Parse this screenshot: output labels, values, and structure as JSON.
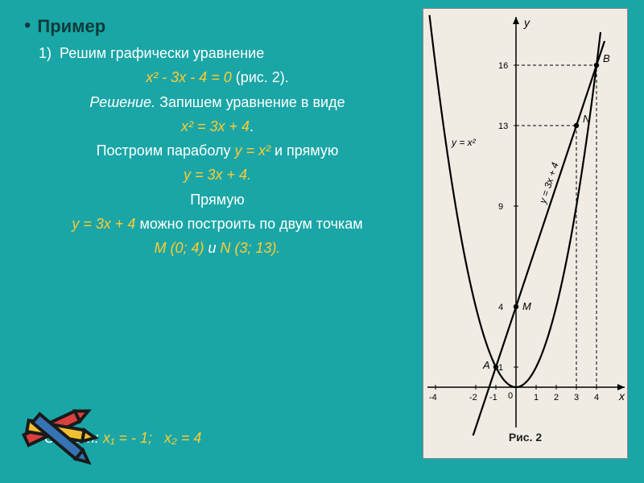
{
  "header": {
    "bullet": "•",
    "title": "Пример"
  },
  "lines": {
    "l1_prefix": "1)",
    "l1": "Решим графически уравнение",
    "eq1": "х² - 3х - 4 = 0",
    "eq1_suffix": " (рис. 2).",
    "l3a": "Решение.",
    "l3b": " Запишем уравнение в виде",
    "eq2": "х² = 3х + 4",
    "l5a": "Построим параболу ",
    "l5b": "у = х²",
    "l5c": " и прямую",
    "eq3": "у = 3х + 4.",
    "l7": "Прямую",
    "l8a": "у = 3х + 4",
    "l8b": "  можно  построить по двум точкам",
    "l9a": "М (0; 4)",
    "l9and": "  и  ",
    "l9b": "N (3; 13)."
  },
  "answer": {
    "label": "Ответ:",
    "x1": "х₁ = - 1;",
    "x2": "х₂  = 4"
  },
  "graph": {
    "background": "#f0ece4",
    "axis_color": "#000000",
    "curve_color": "#000000",
    "caption": "Рис. 2",
    "y_label": "у",
    "x_label": "x",
    "parabola_label": "у = х²",
    "line_label": "у = 3х + 4",
    "points": {
      "A": {
        "x": -1,
        "y": 1,
        "label": "A"
      },
      "B": {
        "x": 4,
        "y": 16,
        "label": "B"
      },
      "M": {
        "x": 0,
        "y": 4,
        "label": "M"
      },
      "N": {
        "x": 3,
        "y": 13,
        "label": "N"
      }
    },
    "x_ticks": [
      -4,
      -2,
      -1,
      0,
      1,
      2,
      3,
      4
    ],
    "y_ticks": [
      1,
      4,
      9,
      13,
      16
    ],
    "xlim": [
      -5,
      5
    ],
    "ylim": [
      -2,
      18
    ]
  },
  "crayons": {
    "colors": [
      "#d94040",
      "#f0c030",
      "#3573b5"
    ],
    "dark": "#1a1a1a"
  }
}
